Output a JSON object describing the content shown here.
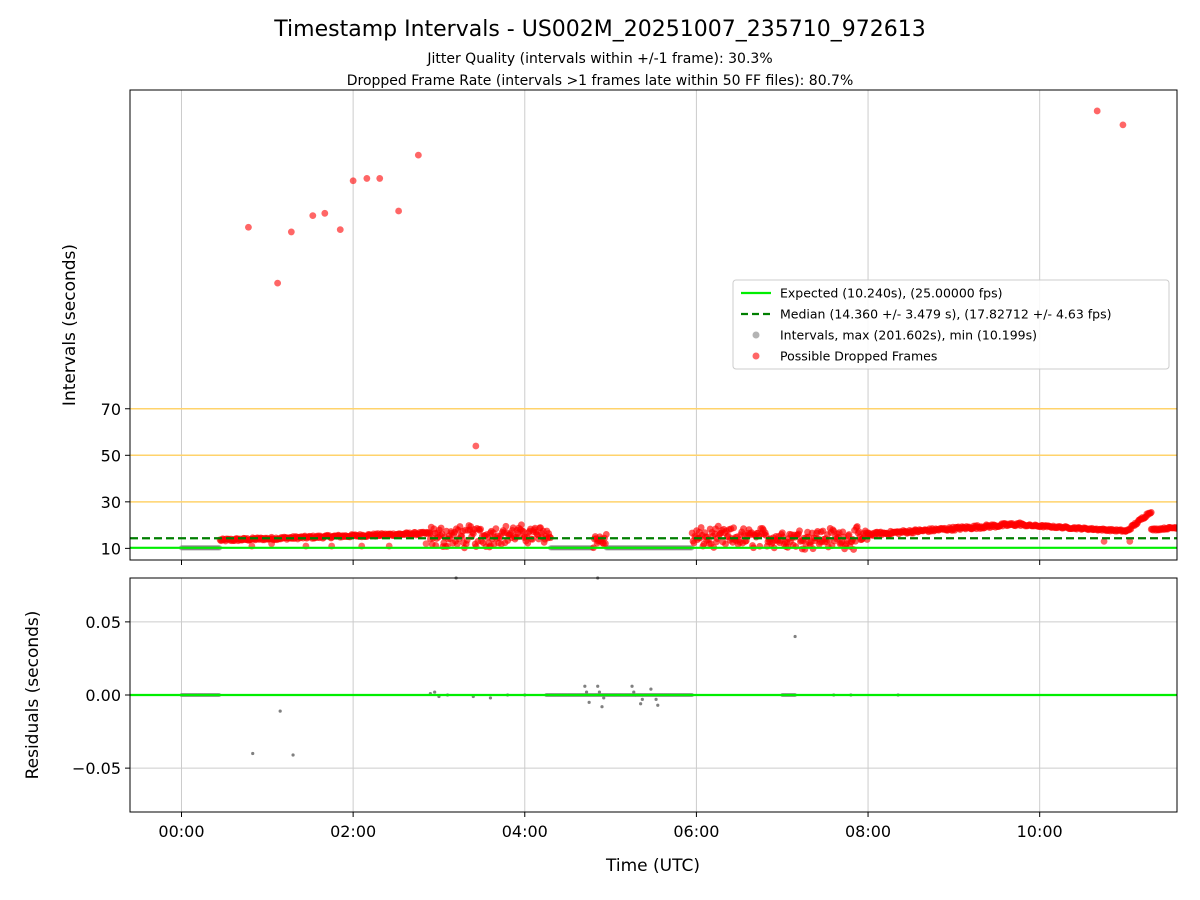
{
  "title": "Timestamp Intervals - US002M_20251007_235710_972613",
  "subtitle_lines": [
    "Jitter Quality (intervals within +/-1 frame): 30.3%",
    "Dropped Frame Rate (intervals >1 frames late within 50 FF files): 80.7%"
  ],
  "colors": {
    "expected": "#00ee00",
    "median": "#007f00",
    "intervals": "#808080",
    "dropped": "#ff0000",
    "threshold": "#ffd36b",
    "grid": "#cccccc"
  },
  "chart_data": [
    {
      "type": "scatter",
      "name": "intervals",
      "xlabel": "",
      "ylabel": "Intervals (seconds)",
      "x_unit": "hours since 00:00 UTC",
      "xlim": [
        -0.6,
        11.6
      ],
      "ylim": [
        5,
        207
      ],
      "yticks": [
        10,
        30,
        50,
        70
      ],
      "grid": "x",
      "threshold_lines": [
        30,
        50,
        70
      ],
      "reference_lines": [
        {
          "name": "Expected (10.240s), (25.00000 fps)",
          "y": 10.24,
          "style": "solid",
          "color": "#00ee00"
        },
        {
          "name": "Median (14.360 +/- 3.479 s), (17.82712 +/- 4.63 fps)",
          "y": 14.36,
          "style": "dashed",
          "color": "#007f00"
        }
      ],
      "legend": {
        "placement": "center-right",
        "entries": [
          {
            "label": "Expected (10.240s), (25.00000 fps)",
            "kind": "line-solid",
            "color": "#00ee00"
          },
          {
            "label": "Median (14.360 +/- 3.479 s), (17.82712 +/- 4.63 fps)",
            "kind": "line-dashed",
            "color": "#007f00"
          },
          {
            "label": "Intervals, max (201.602s), min (10.199s)",
            "kind": "marker",
            "color": "#808080"
          },
          {
            "label": "Possible Dropped Frames",
            "kind": "marker",
            "color": "#ff0000"
          }
        ]
      },
      "interval_segments": [
        {
          "x": [
            0.0,
            0.45
          ],
          "y": 10.24
        },
        {
          "x": [
            4.3,
            4.8
          ],
          "y": 10.24
        },
        {
          "x": [
            4.95,
            5.95
          ],
          "y": 10.24
        }
      ],
      "dropped_outliers": [
        {
          "x": 0.78,
          "y": 148
        },
        {
          "x": 1.12,
          "y": 124
        },
        {
          "x": 1.28,
          "y": 146
        },
        {
          "x": 1.53,
          "y": 153
        },
        {
          "x": 1.67,
          "y": 154
        },
        {
          "x": 1.85,
          "y": 147
        },
        {
          "x": 2.0,
          "y": 168
        },
        {
          "x": 2.16,
          "y": 169
        },
        {
          "x": 2.31,
          "y": 169
        },
        {
          "x": 2.53,
          "y": 155
        },
        {
          "x": 2.76,
          "y": 179
        },
        {
          "x": 3.43,
          "y": 54
        },
        {
          "x": 10.67,
          "y": 198
        },
        {
          "x": 10.97,
          "y": 192
        },
        {
          "x": 0.82,
          "y": 11
        },
        {
          "x": 1.05,
          "y": 12
        },
        {
          "x": 1.45,
          "y": 11
        },
        {
          "x": 1.75,
          "y": 11
        },
        {
          "x": 2.1,
          "y": 11
        },
        {
          "x": 2.42,
          "y": 11
        },
        {
          "x": 2.85,
          "y": 12
        },
        {
          "x": 10.75,
          "y": 13
        },
        {
          "x": 11.05,
          "y": 13
        }
      ],
      "dropped_bands": [
        {
          "x": [
            0.45,
            2.9
          ],
          "y": [
            13.5,
            16.5
          ],
          "jitter": 1.2
        },
        {
          "x": [
            2.9,
            3.6
          ],
          "y": [
            11,
            19
          ],
          "jitter": 3.5
        },
        {
          "x": [
            3.6,
            4.3
          ],
          "y": [
            13,
            19
          ],
          "jitter": 3.5
        },
        {
          "x": [
            4.8,
            4.95
          ],
          "y": [
            11,
            16
          ],
          "jitter": 3
        },
        {
          "x": [
            5.95,
            8.0
          ],
          "y": [
            11,
            18
          ],
          "jitter": 3.5
        },
        {
          "x": [
            8.0,
            9.8
          ],
          "y": [
            16,
            20.5
          ],
          "jitter": 1.5
        },
        {
          "x": [
            9.8,
            11.0
          ],
          "y": [
            20,
            17.5
          ],
          "jitter": 0.8
        },
        {
          "x": [
            11.0,
            11.3
          ],
          "y": [
            17,
            26
          ],
          "jitter": 1.2
        },
        {
          "x": [
            11.3,
            11.6
          ],
          "y": [
            18,
            19
          ],
          "jitter": 0.8
        }
      ]
    },
    {
      "type": "scatter",
      "name": "residuals",
      "xlabel": "Time (UTC)",
      "ylabel": "Residuals (seconds)",
      "xlim": [
        -0.6,
        11.6
      ],
      "ylim": [
        -0.08,
        0.08
      ],
      "yticks": [
        -0.05,
        0.0,
        0.05
      ],
      "ytick_labels": [
        "−0.05",
        "0.00",
        "0.05"
      ],
      "xticks": [
        0,
        2,
        4,
        6,
        8,
        10
      ],
      "xtick_labels": [
        "00:00",
        "02:00",
        "04:00",
        "06:00",
        "08:00",
        "10:00"
      ],
      "grid": "both",
      "zero_line_color": "#00ee00",
      "segments": [
        {
          "x": [
            0.0,
            0.45
          ],
          "y": 0.0
        },
        {
          "x": [
            4.25,
            5.95
          ],
          "y": 0.0
        },
        {
          "x": [
            7.0,
            7.15
          ],
          "y": 0.0
        }
      ],
      "points": [
        {
          "x": 0.83,
          "y": -0.04
        },
        {
          "x": 1.15,
          "y": -0.011
        },
        {
          "x": 1.3,
          "y": -0.041
        },
        {
          "x": 2.9,
          "y": 0.001
        },
        {
          "x": 2.95,
          "y": 0.002
        },
        {
          "x": 3.0,
          "y": -0.001
        },
        {
          "x": 3.1,
          "y": 0.0
        },
        {
          "x": 3.4,
          "y": -0.001
        },
        {
          "x": 3.6,
          "y": -0.002
        },
        {
          "x": 3.8,
          "y": 0.0
        },
        {
          "x": 4.0,
          "y": 0.0
        },
        {
          "x": 4.7,
          "y": 0.006
        },
        {
          "x": 4.72,
          "y": 0.002
        },
        {
          "x": 4.75,
          "y": -0.005
        },
        {
          "x": 4.85,
          "y": 0.006
        },
        {
          "x": 4.87,
          "y": 0.002
        },
        {
          "x": 4.9,
          "y": -0.008
        },
        {
          "x": 4.92,
          "y": -0.002
        },
        {
          "x": 5.25,
          "y": 0.006
        },
        {
          "x": 5.27,
          "y": 0.002
        },
        {
          "x": 5.35,
          "y": -0.006
        },
        {
          "x": 5.37,
          "y": -0.003
        },
        {
          "x": 5.47,
          "y": 0.004
        },
        {
          "x": 5.53,
          "y": -0.003
        },
        {
          "x": 5.55,
          "y": -0.007
        },
        {
          "x": 7.15,
          "y": 0.04
        },
        {
          "x": 7.6,
          "y": 0.0
        },
        {
          "x": 7.8,
          "y": 0.0
        },
        {
          "x": 8.35,
          "y": 0.0
        }
      ]
    }
  ]
}
